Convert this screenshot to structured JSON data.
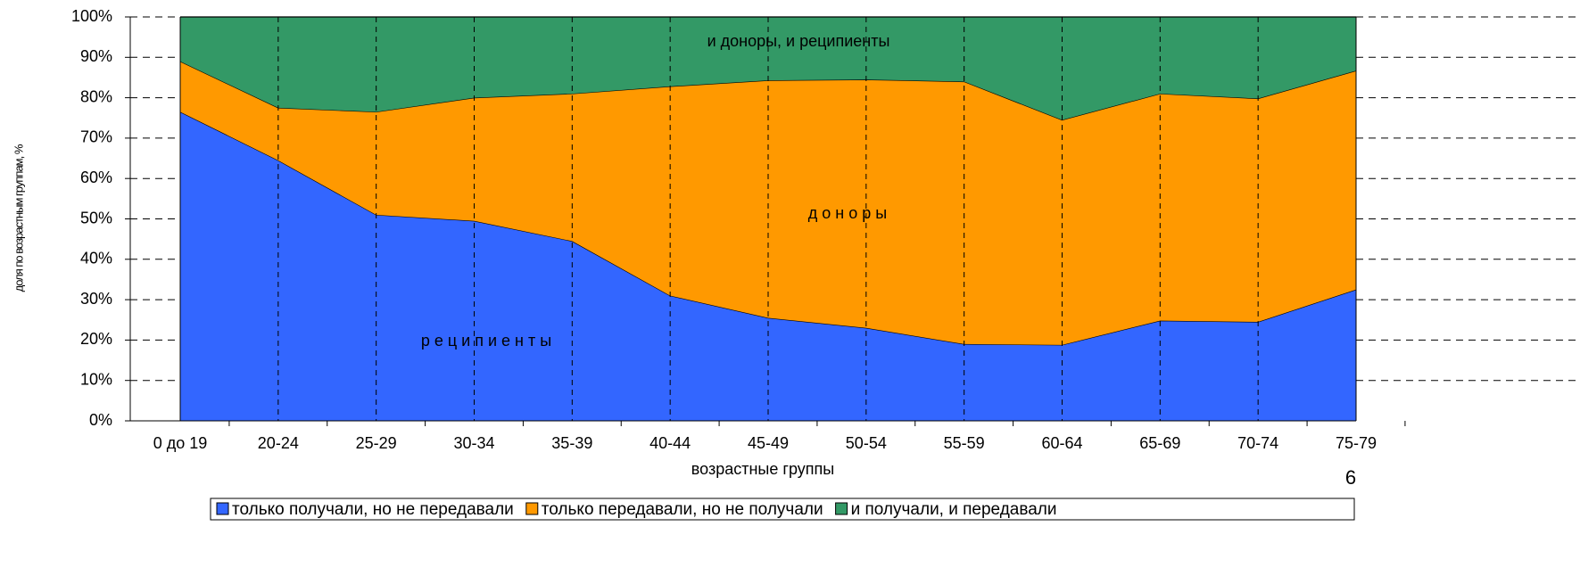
{
  "chart_data": {
    "type": "stacked_area",
    "y_axis_label": "доля по возрастным группам, %",
    "x_axis_label": "возрастные группы",
    "categories": [
      "0 до 19",
      "20-24",
      "25-29",
      "30-34",
      "35-39",
      "40-44",
      "45-49",
      "50-54",
      "55-59",
      "60-64",
      "65-69",
      "70-74",
      "75-79"
    ],
    "series": [
      {
        "name": "только получали, но не передавали",
        "color": "#3366ff",
        "values": [
          76.5,
          64.5,
          51,
          49.5,
          44.5,
          31,
          25.5,
          23,
          19,
          18.8,
          24.8,
          24.5,
          32.5
        ]
      },
      {
        "name": "только передавали, но не получали",
        "color": "#ff9900",
        "values": [
          12.5,
          13,
          25.5,
          30.5,
          36.5,
          51.8,
          58.8,
          61.5,
          65,
          55.7,
          56.2,
          55.3,
          54.2
        ]
      },
      {
        "name": "и получали, и передавали",
        "color": "#339966",
        "values": [
          11,
          22.5,
          23.5,
          20,
          19,
          17.2,
          15.7,
          15.5,
          16,
          25.5,
          19,
          20.2,
          13.3
        ]
      }
    ],
    "annotations": [
      "и доноры, и реципиенты",
      "д о н о р ы",
      "р е ц и п и е н т ы"
    ],
    "page_number": "6",
    "ylim": [
      0,
      100
    ],
    "yticks": [
      {
        "value": 0,
        "label": "0%"
      },
      {
        "value": 10,
        "label": "10%"
      },
      {
        "value": 20,
        "label": "20%"
      },
      {
        "value": 30,
        "label": "30%"
      },
      {
        "value": 40,
        "label": "40%"
      },
      {
        "value": 50,
        "label": "50%"
      },
      {
        "value": 60,
        "label": "60%"
      },
      {
        "value": 70,
        "label": "70%"
      },
      {
        "value": 80,
        "label": "80%"
      },
      {
        "value": 90,
        "label": "90%"
      },
      {
        "value": 100,
        "label": "100%"
      }
    ],
    "grid": true
  }
}
